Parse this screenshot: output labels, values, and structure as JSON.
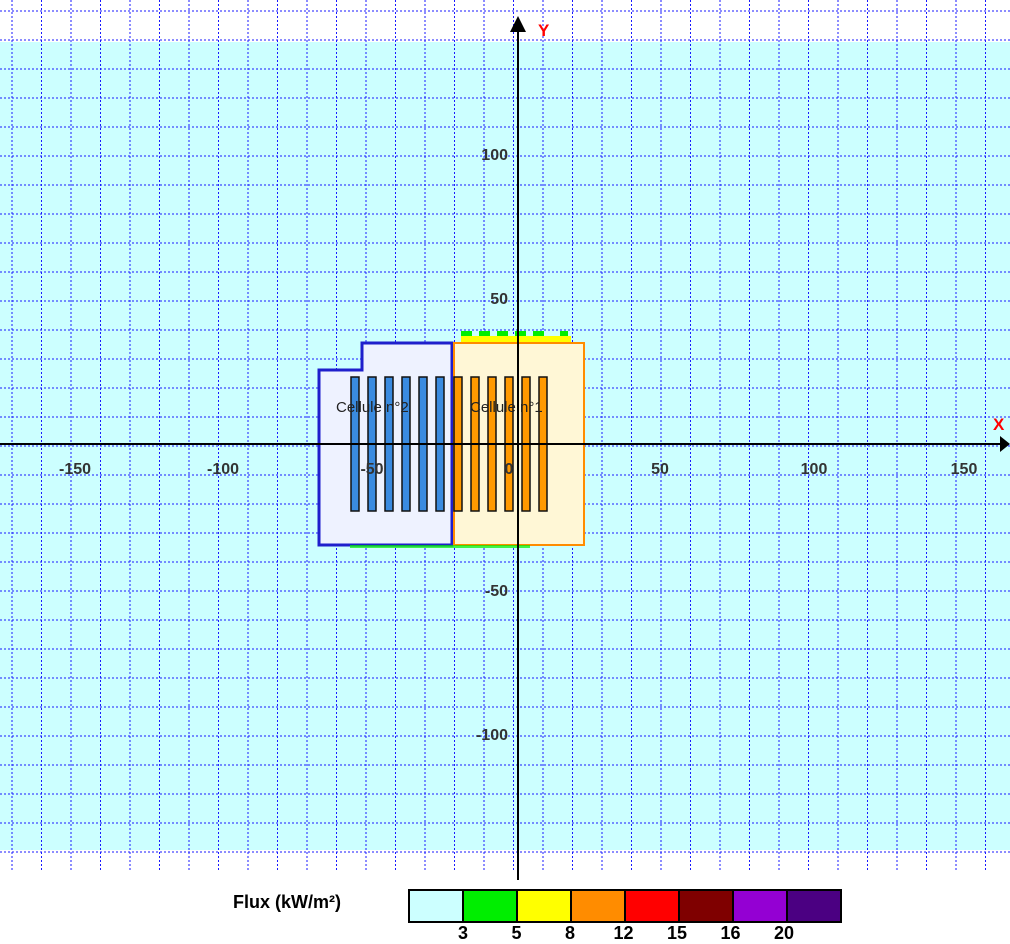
{
  "axes": {
    "x_name": "X",
    "y_name": "Y",
    "x_ticks": [
      "-150",
      "-100",
      "-50",
      "0",
      "50",
      "100",
      "150"
    ],
    "y_ticks": [
      "100",
      "50",
      "-50",
      "-100"
    ]
  },
  "cells": [
    {
      "label": "Cellule n°2",
      "color": "#1f1fcc",
      "fill": "#eef2ff",
      "rack_color": "#3a8be0"
    },
    {
      "label": "Cellule n°1",
      "color": "#ff8c00",
      "fill": "#fff7d6",
      "rack_color": "#ff9900"
    }
  ],
  "legend": {
    "title": "Flux (kW/m²)",
    "colors": [
      "#ccffff",
      "#00ee00",
      "#ffff00",
      "#ff8c00",
      "#ff0000",
      "#7f0000",
      "#9400d3",
      "#4b0082"
    ],
    "ticks": [
      "3",
      "5",
      "8",
      "12",
      "15",
      "16",
      "20"
    ]
  },
  "background": {
    "zone_color": "#ccffff",
    "grid_color": "#1a1aff"
  }
}
